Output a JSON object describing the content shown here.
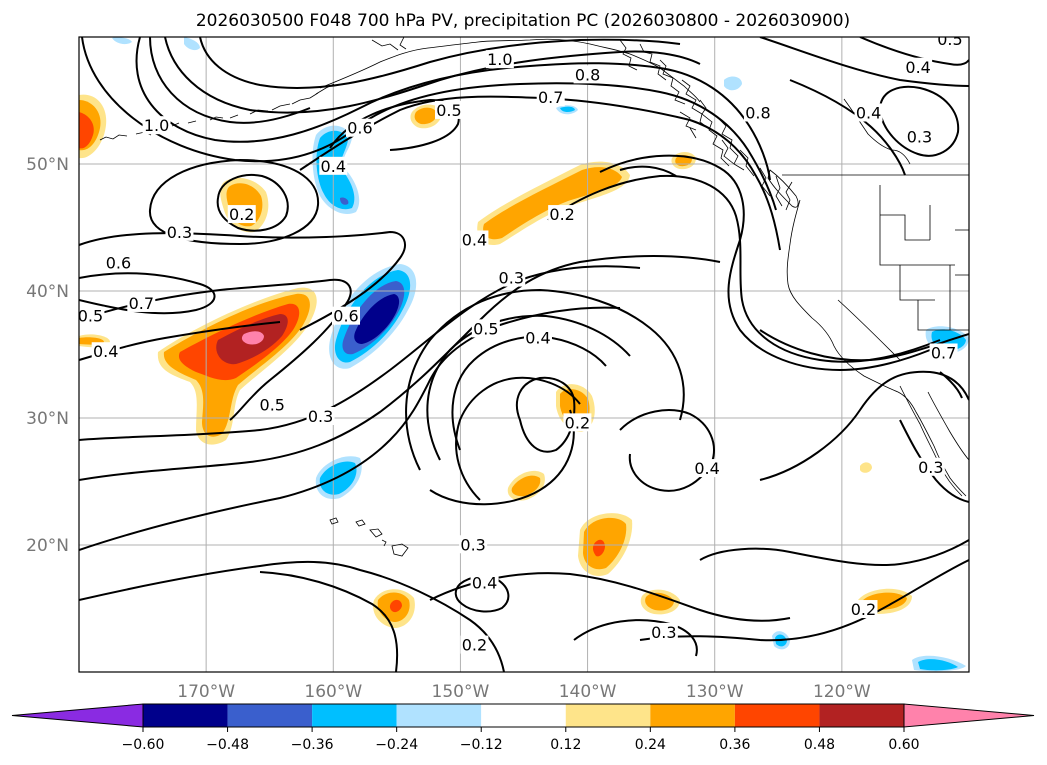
{
  "chart_data": {
    "type": "contour",
    "title": "2026030500 F048 700 hPa PV, precipitation PC (2026030800 - 2026030900)",
    "lon_ticks": [
      "170°W",
      "160°W",
      "150°W",
      "140°W",
      "130°W",
      "120°W"
    ],
    "lon_values": [
      -170,
      -160,
      -150,
      -140,
      -130,
      -120
    ],
    "lat_ticks": [
      "50°N",
      "40°N",
      "30°N",
      "20°N"
    ],
    "lat_values": [
      50,
      40,
      30,
      20
    ],
    "lon_range": [
      -180,
      -110
    ],
    "lat_range": [
      10,
      60
    ],
    "grid": true,
    "colorbar": {
      "orientation": "horizontal",
      "extend": "both",
      "bounds": [
        -0.72,
        -0.6,
        -0.48,
        -0.36,
        -0.24,
        -0.12,
        0.12,
        0.24,
        0.36,
        0.48,
        0.6,
        0.72
      ],
      "tick_labels": [
        "−0.60",
        "−0.48",
        "−0.36",
        "−0.24",
        "−0.12",
        "0.12",
        "0.24",
        "0.36",
        "0.48",
        "0.60"
      ],
      "tick_values": [
        -0.6,
        -0.48,
        -0.36,
        -0.24,
        -0.12,
        0.12,
        0.24,
        0.36,
        0.48,
        0.6
      ],
      "colors": [
        "#8a2be2",
        "#00008b",
        "#3a5fcd",
        "#00bfff",
        "#b0e2ff",
        "#ffffff",
        "#fee48a",
        "#ffa500",
        "#ff4500",
        "#b22222",
        "#ff82ab"
      ]
    },
    "contour_labels": [
      {
        "text": "1.0",
        "lon": -146.9,
        "lat": 58.1
      },
      {
        "text": "0.8",
        "lon": -140.0,
        "lat": 56.9
      },
      {
        "text": "0.7",
        "lon": -142.9,
        "lat": 55.1
      },
      {
        "text": "0.5",
        "lon": -150.9,
        "lat": 54.1
      },
      {
        "text": "1.0",
        "lon": -173.9,
        "lat": 52.9
      },
      {
        "text": "0.6",
        "lon": -157.9,
        "lat": 52.7
      },
      {
        "text": "0.4",
        "lon": -160.0,
        "lat": 49.7
      },
      {
        "text": "0.2",
        "lon": -167.2,
        "lat": 45.9
      },
      {
        "text": "0.3",
        "lon": -172.1,
        "lat": 44.5
      },
      {
        "text": "0.6",
        "lon": -176.9,
        "lat": 42.1
      },
      {
        "text": "0.7",
        "lon": -175.1,
        "lat": 38.9
      },
      {
        "text": "0.5",
        "lon": -179.1,
        "lat": 37.9
      },
      {
        "text": "0.4",
        "lon": -177.9,
        "lat": 35.1
      },
      {
        "text": "0.5",
        "lon": -164.8,
        "lat": 30.9
      },
      {
        "text": "0.3",
        "lon": -161.0,
        "lat": 30.0
      },
      {
        "text": "0.6",
        "lon": -159.0,
        "lat": 37.9
      },
      {
        "text": "0.4",
        "lon": -148.9,
        "lat": 43.9
      },
      {
        "text": "0.3",
        "lon": -146.0,
        "lat": 40.9
      },
      {
        "text": "0.5",
        "lon": -148.0,
        "lat": 36.9
      },
      {
        "text": "0.4",
        "lon": -143.9,
        "lat": 36.2
      },
      {
        "text": "0.2",
        "lon": -142.0,
        "lat": 45.9
      },
      {
        "text": "0.2",
        "lon": -140.8,
        "lat": 29.5
      },
      {
        "text": "0.4",
        "lon": -130.6,
        "lat": 25.9
      },
      {
        "text": "0.3",
        "lon": -149.0,
        "lat": 19.9
      },
      {
        "text": "0.4",
        "lon": -148.1,
        "lat": 16.9
      },
      {
        "text": "0.2",
        "lon": -148.9,
        "lat": 12.0
      },
      {
        "text": "0.3",
        "lon": -134.0,
        "lat": 13.0
      },
      {
        "text": "0.2",
        "lon": -118.3,
        "lat": 14.8
      },
      {
        "text": "0.4",
        "lon": -114.0,
        "lat": 57.5
      },
      {
        "text": "0.4",
        "lon": -117.9,
        "lat": 53.9
      },
      {
        "text": "0.3",
        "lon": -113.9,
        "lat": 52.0
      },
      {
        "text": "0.8",
        "lon": -126.6,
        "lat": 53.9
      },
      {
        "text": "0.5",
        "lon": -111.5,
        "lat": 59.7
      },
      {
        "text": "0.7",
        "lon": -112.0,
        "lat": 35.0
      },
      {
        "text": "0.3",
        "lon": -113.0,
        "lat": 26.0
      }
    ]
  }
}
